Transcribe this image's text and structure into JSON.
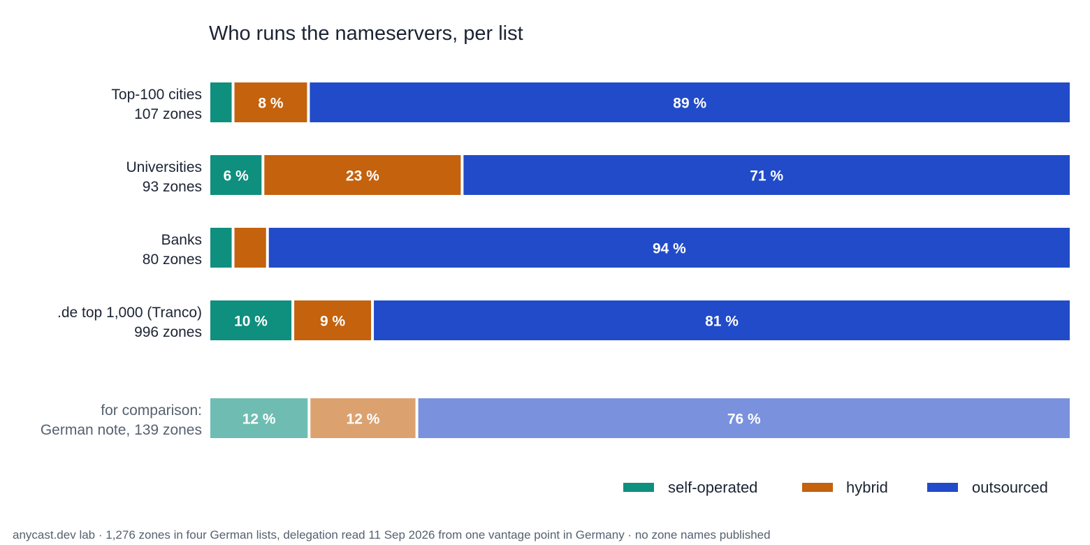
{
  "chart_data": {
    "type": "bar",
    "orientation": "horizontal",
    "stacked": true,
    "normalized": true,
    "title": "Who runs the nameservers, per list",
    "xlim": [
      0,
      100
    ],
    "grid": false,
    "legend_position": "bottom-right",
    "series": [
      {
        "name": "self-operated",
        "color": "#0f8f7e",
        "comparison_color": "#6fbdb2"
      },
      {
        "name": "hybrid",
        "color": "#c4620e",
        "comparison_color": "#dba270"
      },
      {
        "name": "outsourced",
        "color": "#214bc8",
        "comparison_color": "#7a92dd"
      }
    ],
    "rows": [
      {
        "label": "Top-100 cities",
        "sublabel": "107 zones",
        "values": [
          2.5,
          8.5,
          89
        ],
        "labels": [
          "",
          "8 %",
          "89 %"
        ]
      },
      {
        "label": "Universities",
        "sublabel": "93 zones",
        "values": [
          6,
          23,
          71
        ],
        "labels": [
          "6 %",
          "23 %",
          "71 %"
        ]
      },
      {
        "label": "Banks",
        "sublabel": "80 zones",
        "values": [
          2.5,
          3.7,
          93.8
        ],
        "labels": [
          "",
          "",
          "94 %"
        ]
      },
      {
        "label": ".de top 1,000 (Tranco)",
        "sublabel": "996 zones",
        "values": [
          9.5,
          9,
          81.5
        ],
        "labels": [
          "10 %",
          "9 %",
          "81 %"
        ]
      },
      {
        "label": "for comparison:",
        "sublabel": "German note, 139 zones",
        "values": [
          11.4,
          12.3,
          76.3
        ],
        "labels": [
          "12 %",
          "12 %",
          "76 %"
        ],
        "comparison": true
      }
    ],
    "footer": "anycast.dev lab · 1,276 zones in four German lists, delegation read 11 Sep 2026 from one vantage point in Germany · no zone names published"
  }
}
